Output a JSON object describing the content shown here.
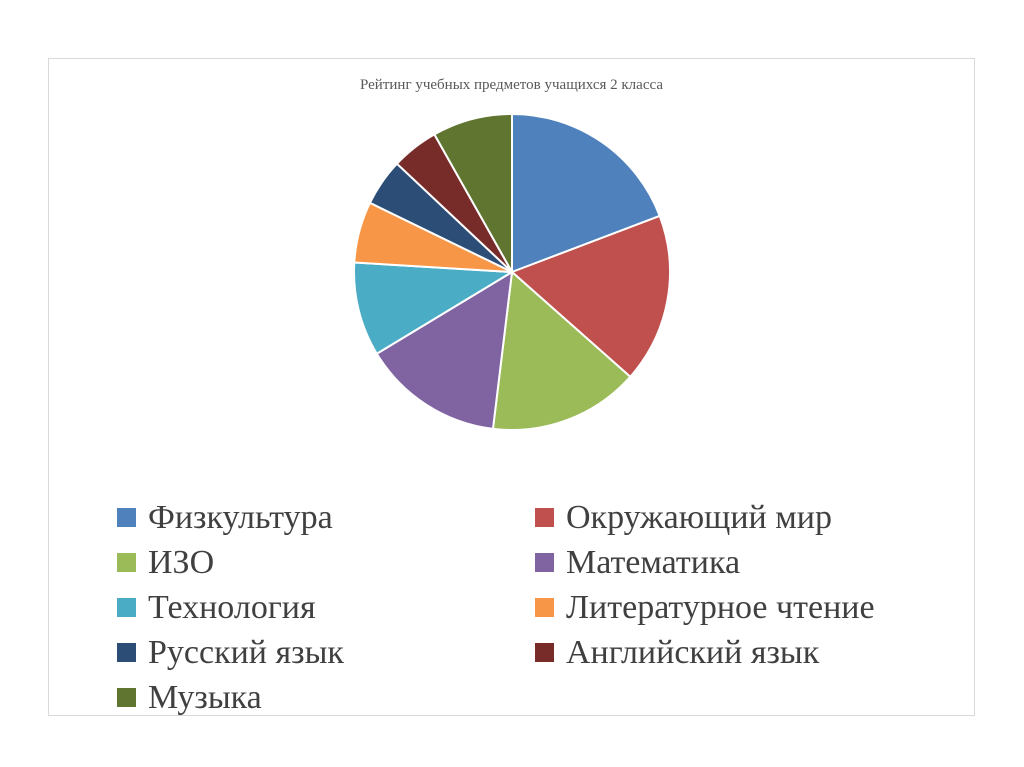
{
  "chart_data": {
    "type": "pie",
    "title": "Рейтинг учебных предметов учащихся 2 класса",
    "categories": [
      "Физкультура",
      "Окружающий мир",
      "ИЗО",
      "Математика",
      "Технология",
      "Литературное чтение",
      "Русский язык",
      "Английский язык",
      "Музыка"
    ],
    "values": [
      20,
      18,
      16,
      15,
      10,
      6.5,
      5,
      5,
      8.5
    ],
    "colors": [
      "#4f81bd",
      "#c0504d",
      "#9bbb59",
      "#8064a2",
      "#4bacc6",
      "#f79646",
      "#2c4d75",
      "#772c2a",
      "#5f7530"
    ],
    "legend_position": "bottom"
  }
}
